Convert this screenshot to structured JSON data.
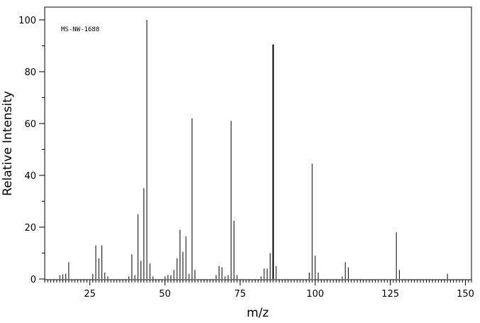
{
  "chart_data": {
    "type": "bar",
    "annotation": "MS-NW-1688",
    "xlabel": "m/z",
    "ylabel": "Relative Intensity",
    "xlim": [
      10,
      152
    ],
    "ylim": [
      0,
      105
    ],
    "x_ticks": [
      25,
      50,
      75,
      100,
      125,
      150
    ],
    "y_ticks": [
      0,
      20,
      40,
      60,
      80,
      100
    ],
    "grid": false,
    "colors": {
      "peaks": "#000000",
      "axes": "#000000"
    },
    "peaks": [
      {
        "x": 15,
        "y": 1.5
      },
      {
        "x": 16,
        "y": 1.8
      },
      {
        "x": 17,
        "y": 2.0
      },
      {
        "x": 18,
        "y": 6.5
      },
      {
        "x": 26,
        "y": 2.0
      },
      {
        "x": 27,
        "y": 13.0
      },
      {
        "x": 28,
        "y": 8.0
      },
      {
        "x": 29,
        "y": 13.0
      },
      {
        "x": 30,
        "y": 2.5
      },
      {
        "x": 31,
        "y": 1.0
      },
      {
        "x": 38,
        "y": 1.0
      },
      {
        "x": 39,
        "y": 9.5
      },
      {
        "x": 40,
        "y": 1.5
      },
      {
        "x": 41,
        "y": 25.0
      },
      {
        "x": 42,
        "y": 7.0
      },
      {
        "x": 43,
        "y": 35.0
      },
      {
        "x": 44,
        "y": 100.0
      },
      {
        "x": 45,
        "y": 6.0
      },
      {
        "x": 46,
        "y": 1.0
      },
      {
        "x": 50,
        "y": 1.0
      },
      {
        "x": 51,
        "y": 1.5
      },
      {
        "x": 52,
        "y": 1.5
      },
      {
        "x": 53,
        "y": 3.5
      },
      {
        "x": 54,
        "y": 8.0
      },
      {
        "x": 55,
        "y": 19.0
      },
      {
        "x": 56,
        "y": 10.5
      },
      {
        "x": 57,
        "y": 16.5
      },
      {
        "x": 58,
        "y": 2.0
      },
      {
        "x": 59,
        "y": 62.0
      },
      {
        "x": 60,
        "y": 3.5
      },
      {
        "x": 67,
        "y": 1.5
      },
      {
        "x": 68,
        "y": 5.0
      },
      {
        "x": 69,
        "y": 4.5
      },
      {
        "x": 70,
        "y": 1.0
      },
      {
        "x": 71,
        "y": 1.5
      },
      {
        "x": 72,
        "y": 61.0
      },
      {
        "x": 73,
        "y": 22.5
      },
      {
        "x": 74,
        "y": 1.5
      },
      {
        "x": 82,
        "y": 1.0
      },
      {
        "x": 83,
        "y": 4.0
      },
      {
        "x": 84,
        "y": 4.0
      },
      {
        "x": 85,
        "y": 10.0
      },
      {
        "x": 86,
        "y": 90.5
      },
      {
        "x": 87,
        "y": 5.0
      },
      {
        "x": 98,
        "y": 2.5
      },
      {
        "x": 99,
        "y": 44.5
      },
      {
        "x": 100,
        "y": 9.0
      },
      {
        "x": 101,
        "y": 2.5
      },
      {
        "x": 109,
        "y": 1.0
      },
      {
        "x": 110,
        "y": 6.5
      },
      {
        "x": 111,
        "y": 4.5
      },
      {
        "x": 127,
        "y": 18.0
      },
      {
        "x": 128,
        "y": 3.5
      },
      {
        "x": 144,
        "y": 2.0
      }
    ]
  }
}
